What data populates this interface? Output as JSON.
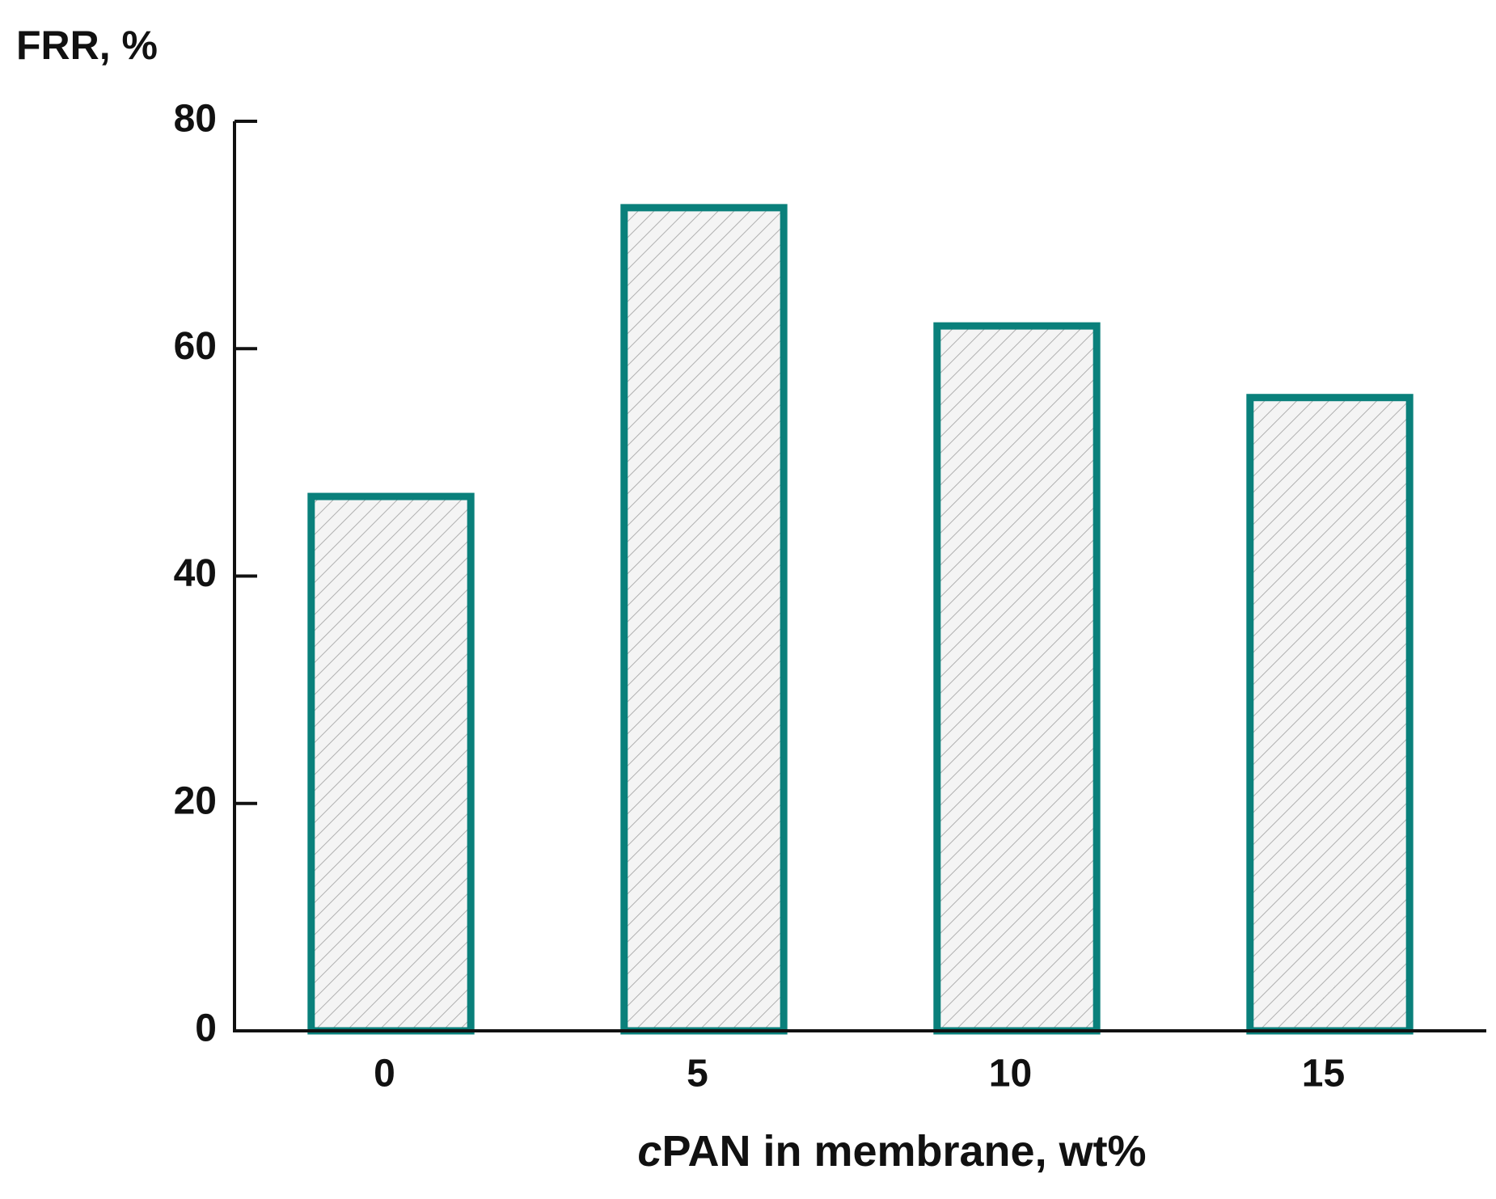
{
  "chart_data": {
    "type": "bar",
    "y_label": "FRR, %",
    "x_label": "cPAN in membrane, wt%",
    "categories": [
      "0",
      "5",
      "10",
      "15"
    ],
    "values": [
      47,
      72.4,
      62,
      55.7
    ],
    "color": "#0a807b",
    "ylim": [
      0,
      80
    ],
    "yticks": [
      0,
      20,
      40,
      60,
      80
    ]
  }
}
